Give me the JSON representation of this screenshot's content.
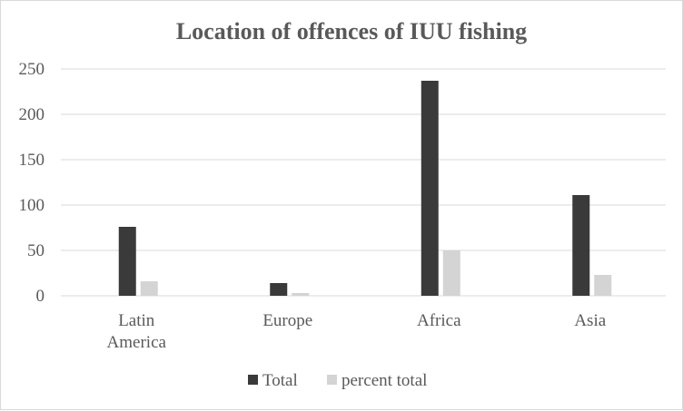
{
  "chart_data": {
    "type": "bar",
    "title": "Location of offences of IUU fishing",
    "categories": [
      "Latin America",
      "Europe",
      "Africa",
      "Asia"
    ],
    "category_lines": [
      [
        "Latin",
        "America"
      ],
      [
        "Europe"
      ],
      [
        "Africa"
      ],
      [
        "Asia"
      ]
    ],
    "series": [
      {
        "name": "Total",
        "values": [
          76,
          14,
          237,
          111
        ],
        "color": "#3a3a3a"
      },
      {
        "name": "percent total",
        "values": [
          16,
          3,
          50,
          23
        ],
        "color": "#d4d4d4"
      }
    ],
    "ylim": [
      0,
      250
    ],
    "yticks": [
      0,
      50,
      100,
      150,
      200,
      250
    ],
    "grid": true,
    "legend": "bottom",
    "gridline_color": "#d9d9d9"
  }
}
